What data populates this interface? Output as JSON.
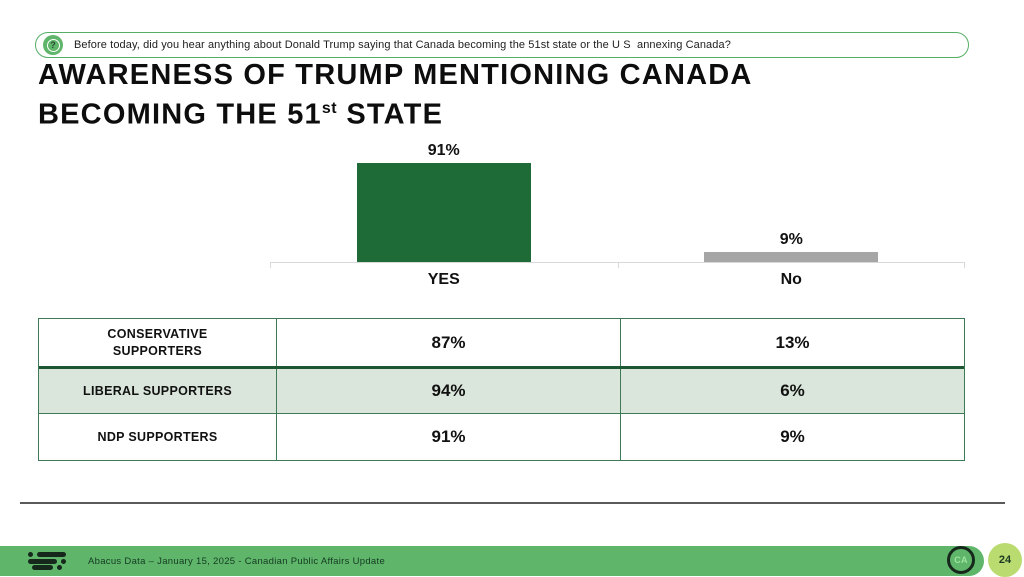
{
  "question_bar": {
    "icon": "?",
    "text": "Before today, did you hear anything about Donald Trump saying that Canada becoming the 51st state or the U S  annexing Canada?"
  },
  "title": {
    "line1": "AWARENESS OF TRUMP MENTIONING CANADA",
    "line2_pre": "BECOMING THE 51",
    "line2_sup": "st",
    "line2_post": " STATE"
  },
  "chart_data": {
    "type": "bar",
    "categories": [
      "YES",
      "No"
    ],
    "values": [
      91,
      9
    ],
    "value_labels": [
      "91%",
      "9%"
    ],
    "bar_colors": [
      "#1E6B38",
      "#A6A6A6"
    ],
    "ylim": [
      0,
      100
    ],
    "grid": false,
    "legend": "none",
    "title": "Awareness of Trump mentioning Canada becoming the 51st state"
  },
  "table": {
    "columns": [
      "group",
      "yes",
      "no"
    ],
    "rows": [
      {
        "label": "CONSERVATIVE SUPPORTERS",
        "yes": "87%",
        "no": "13%"
      },
      {
        "label": "LIBERAL SUPPORTERS",
        "yes": "94%",
        "no": "6%"
      },
      {
        "label": "NDP SUPPORTERS",
        "yes": "91%",
        "no": "9%"
      }
    ],
    "highlight_row_index": 1
  },
  "footer": {
    "source_text": "Abacus Data – January 15, 2025 - Canadian Public Affairs Update",
    "logo_badge": "CA",
    "page_number": "24"
  },
  "colors": {
    "accent_green_dark": "#1E6B38",
    "accent_green_mid": "#5FB66A",
    "bar_gray": "#A6A6A6",
    "table_highlight_bg": "#DAE6DC",
    "table_border": "#3E7A55",
    "page_badge_bg": "#B9DB70"
  }
}
